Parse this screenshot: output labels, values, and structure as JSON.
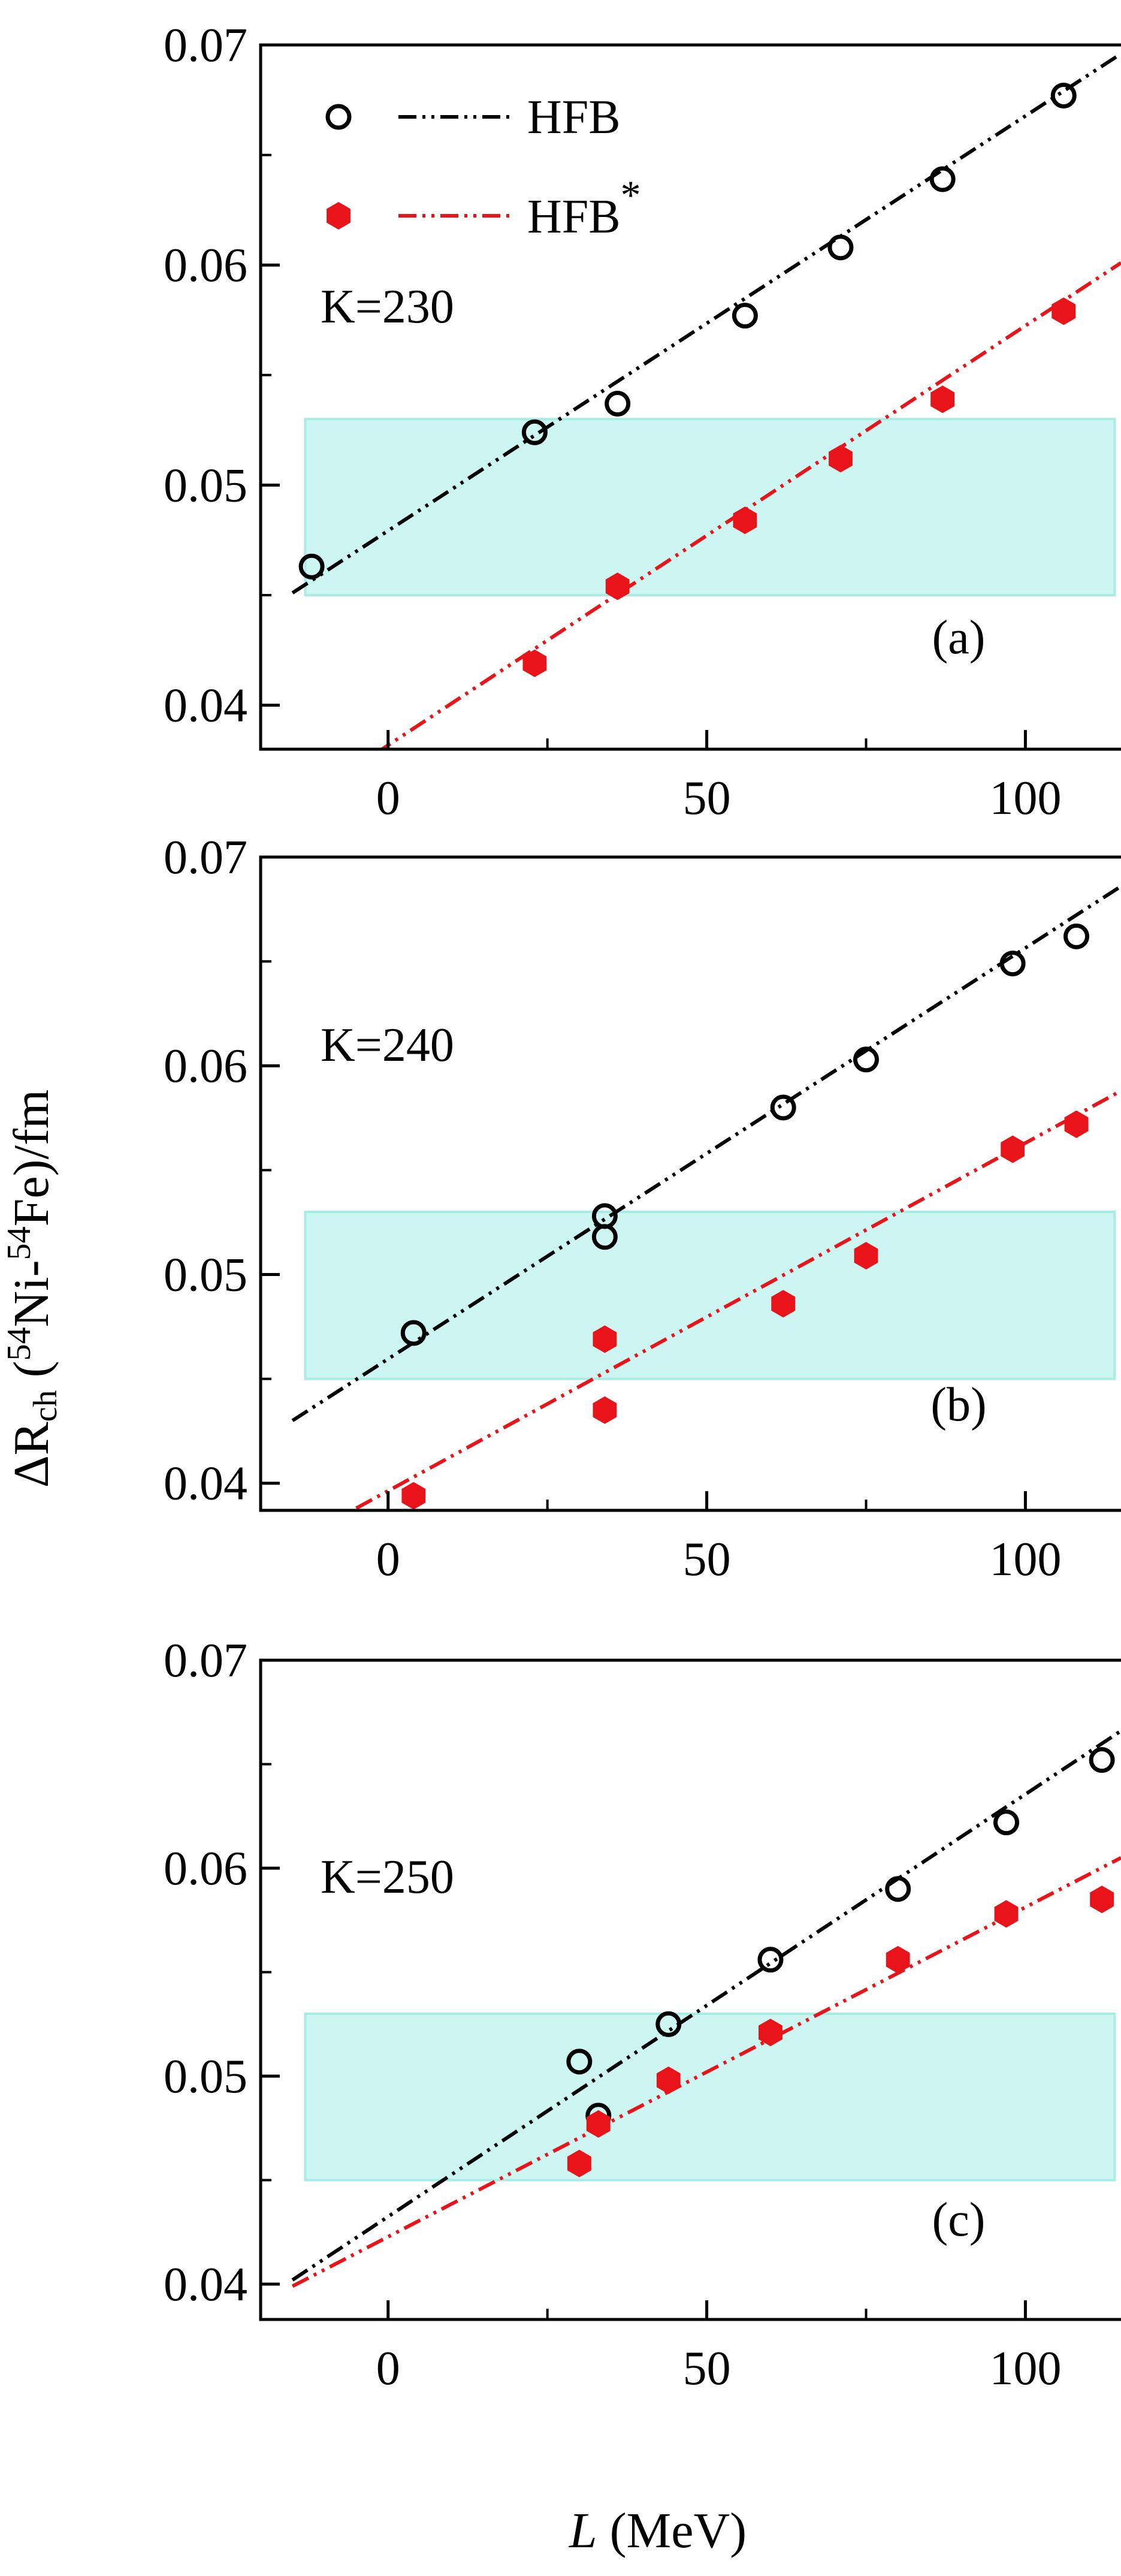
{
  "figure": {
    "ylabel_prefix": "ΔR",
    "ylabel_sub": "ch",
    "ylabel_open": " (",
    "ylabel_sup1": "54",
    "ylabel_mid": "Ni-",
    "ylabel_sup2": "54",
    "ylabel_close": "Fe)/fm",
    "xlabel_var": "L",
    "xlabel_unit": " (MeV)"
  },
  "legend": {
    "position": "top-left of panel (a)",
    "entries": [
      {
        "label": "HFB",
        "sup": "",
        "marker": "open-circle",
        "color": "#000000",
        "line": "dash-dot-dot"
      },
      {
        "label": "HFB",
        "sup": "*",
        "marker": "filled-hexagon",
        "color": "#e8141a",
        "line": "dash-dot-dot"
      }
    ]
  },
  "colors": {
    "band": "#cdf5f2",
    "band_edge": "#a8ece6",
    "hfb": "#000000",
    "hfb_star": "#e8141a"
  },
  "chart_data": [
    {
      "type": "scatter",
      "panel_label": "(a)",
      "annotation": "K=230",
      "xlim": [
        -20,
        115
      ],
      "ylim": [
        0.038,
        0.07
      ],
      "xticks": [
        0,
        50,
        100
      ],
      "xtick_labels": [
        "0",
        "50",
        "100"
      ],
      "yticks": [
        0.04,
        0.05,
        0.06,
        0.07
      ],
      "ytick_labels": [
        "0.04",
        "0.05",
        "0.06",
        "0.07"
      ],
      "band": [
        0.045,
        0.053
      ],
      "band_x": [
        -13,
        114
      ],
      "series": [
        {
          "name": "HFB",
          "marker": "open-circle",
          "x": [
            -12,
            23,
            36,
            56,
            71,
            87,
            106
          ],
          "y": [
            0.0463,
            0.0524,
            0.0537,
            0.0577,
            0.0608,
            0.0639,
            0.0677
          ],
          "fit": [
            [
              -15,
              0.0451
            ],
            [
              115,
              0.0696
            ]
          ]
        },
        {
          "name": "HFB*",
          "marker": "filled-hexagon",
          "x": [
            23,
            36,
            56,
            71,
            87,
            106
          ],
          "y": [
            0.0419,
            0.0454,
            0.0484,
            0.0512,
            0.0539,
            0.0579
          ],
          "fit": [
            [
              -2,
              0.0378
            ],
            [
              115,
              0.0601
            ]
          ]
        }
      ]
    },
    {
      "type": "scatter",
      "panel_label": "(b)",
      "annotation": "K=240",
      "xlim": [
        -20,
        115
      ],
      "ylim": [
        0.0387,
        0.07
      ],
      "xticks": [
        0,
        50,
        100
      ],
      "xtick_labels": [
        "0",
        "50",
        "100"
      ],
      "yticks": [
        0.04,
        0.05,
        0.06,
        0.07
      ],
      "ytick_labels": [
        "0.04",
        "0.05",
        "0.06",
        "0.07"
      ],
      "band": [
        0.045,
        0.053
      ],
      "band_x": [
        -13,
        114
      ],
      "series": [
        {
          "name": "HFB",
          "marker": "open-circle",
          "x": [
            4,
            34,
            34,
            62,
            75,
            98,
            108
          ],
          "y": [
            0.0472,
            0.0528,
            0.0518,
            0.058,
            0.0603,
            0.0649,
            0.0662
          ],
          "fit": [
            [
              -15,
              0.043
            ],
            [
              115,
              0.0686
            ]
          ]
        },
        {
          "name": "HFB*",
          "marker": "filled-hexagon",
          "x": [
            4,
            34,
            34,
            62,
            75,
            98,
            108
          ],
          "y": [
            0.0394,
            0.0469,
            0.0435,
            0.0486,
            0.0509,
            0.056,
            0.0572
          ],
          "fit": [
            [
              -5,
              0.0388
            ],
            [
              115,
              0.0588
            ]
          ]
        }
      ]
    },
    {
      "type": "scatter",
      "panel_label": "(c)",
      "annotation": "K=250",
      "xlim": [
        -20,
        115
      ],
      "ylim": [
        0.0383,
        0.07
      ],
      "xticks": [
        0,
        50,
        100
      ],
      "xtick_labels": [
        "0",
        "50",
        "100"
      ],
      "yticks": [
        0.04,
        0.05,
        0.06,
        0.07
      ],
      "ytick_labels": [
        "0.04",
        "0.05",
        "0.06",
        "0.07"
      ],
      "band": [
        0.045,
        0.053
      ],
      "band_x": [
        -13,
        114
      ],
      "series": [
        {
          "name": "HFB",
          "marker": "open-circle",
          "x": [
            30,
            33,
            44,
            60,
            80,
            97,
            112
          ],
          "y": [
            0.0507,
            0.0481,
            0.0525,
            0.0556,
            0.059,
            0.0622,
            0.0652
          ],
          "fit": [
            [
              -15,
              0.0402
            ],
            [
              115,
              0.0666
            ]
          ]
        },
        {
          "name": "HFB*",
          "marker": "filled-hexagon",
          "x": [
            30,
            33,
            44,
            60,
            80,
            97,
            112
          ],
          "y": [
            0.0458,
            0.0477,
            0.0498,
            0.0521,
            0.0556,
            0.0578,
            0.0585
          ],
          "fit": [
            [
              -15,
              0.0399
            ],
            [
              115,
              0.0605
            ]
          ]
        }
      ]
    }
  ]
}
